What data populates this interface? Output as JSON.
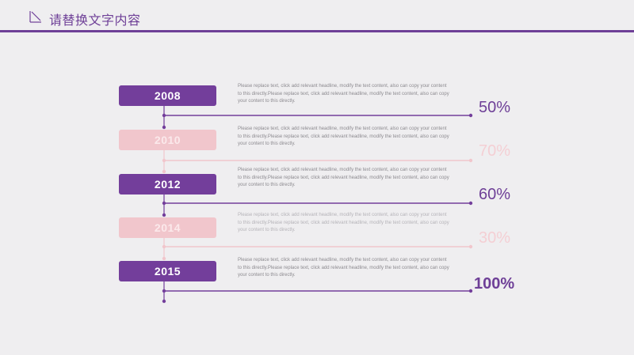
{
  "header": {
    "title": "请替换文字内容",
    "accent_color": "#6e3f97",
    "icon": "diagonal-slash-icon"
  },
  "timeline": {
    "items": [
      {
        "year": "2008",
        "description": "Please replace text, click add relevant headline, modify the text content, also can copy your content to this directly.Please replace text, click add relevant headline, modify the text content, also can copy your content to this directly.",
        "percent": "50%",
        "style": "dark"
      },
      {
        "year": "2010",
        "description": "Please replace text, click add relevant headline, modify the text content, also can copy your content to this directly.Please replace text, click add relevant headline, modify the text content, also can copy your content to this directly.",
        "percent": "70%",
        "style": "light"
      },
      {
        "year": "2012",
        "description": "Please replace text, click add relevant headline, modify the text content, also can copy your content to this directly.Please replace text, click add relevant headline, modify the text content, also can copy your content to this directly.",
        "percent": "60%",
        "style": "dark"
      },
      {
        "year": "2014",
        "description": "Please replace text, click add relevant headline, modify the text content, also can copy your content to this directly.Please replace text, click add relevant headline, modify the text content, also can copy your content to this directly.",
        "percent": "30%",
        "style": "light"
      },
      {
        "year": "2015",
        "description": "Please replace text, click add relevant headline, modify the text content, also can copy your content to this directly.Please replace text, click add relevant headline, modify the text content, also can copy your content to this directly.",
        "percent": "100%",
        "style": "dark"
      }
    ],
    "colors": {
      "dark": "#733e9b",
      "light": "#f1c6cc"
    }
  }
}
